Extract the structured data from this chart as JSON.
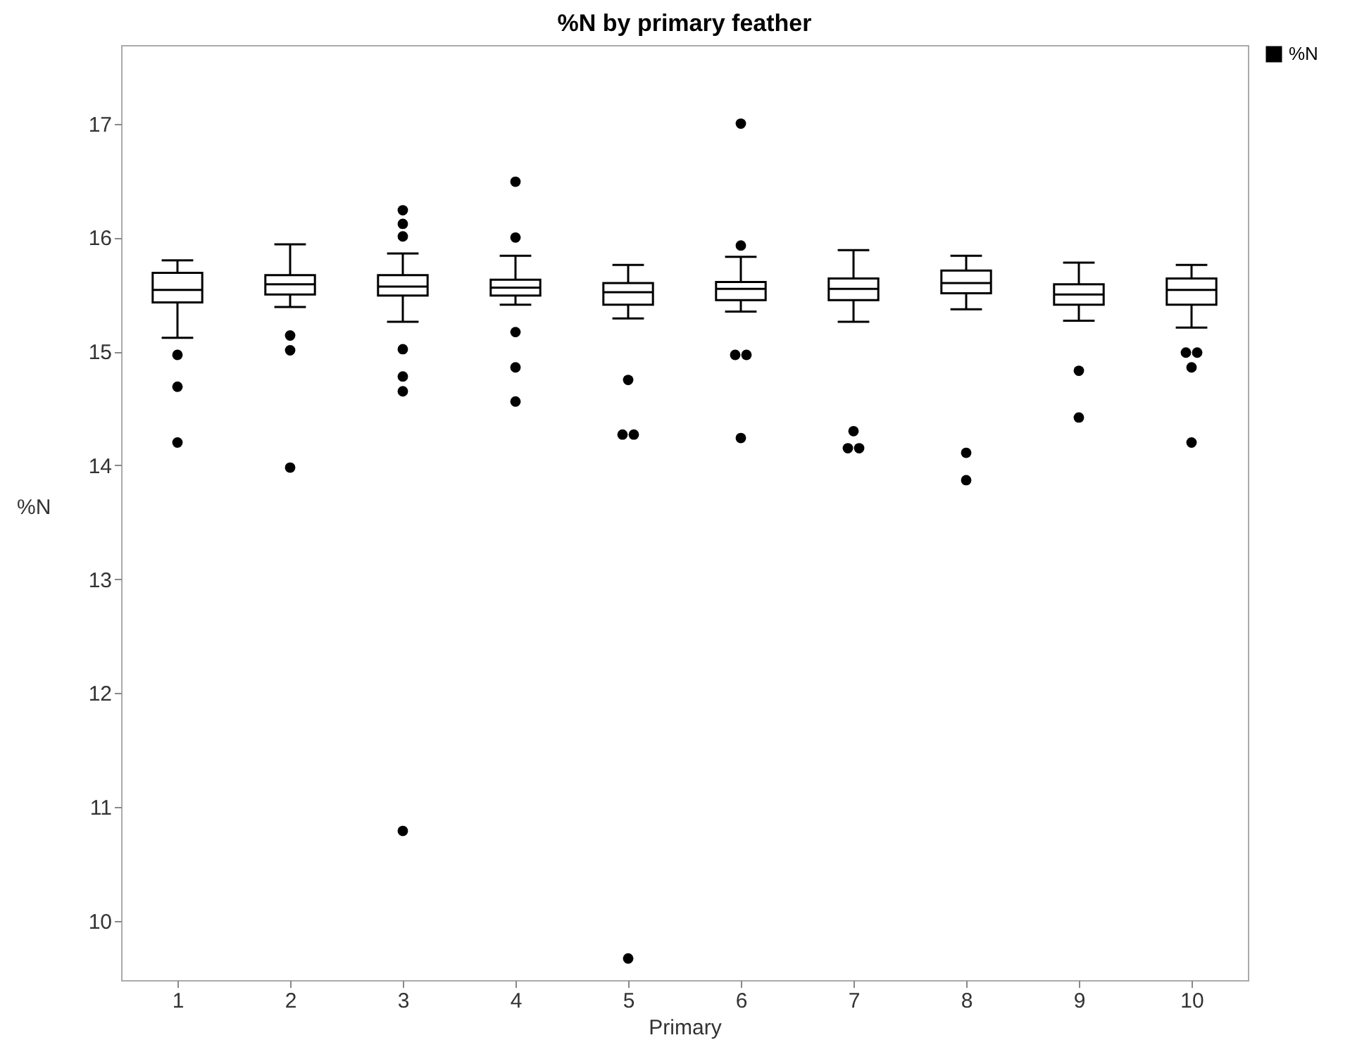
{
  "chart_data": {
    "type": "box",
    "title": "%N by primary feather",
    "xlabel": "Primary",
    "ylabel": "%N",
    "categories": [
      "1",
      "2",
      "3",
      "4",
      "5",
      "6",
      "7",
      "8",
      "9",
      "10"
    ],
    "ylim": [
      9.48,
      17.69
    ],
    "yticks": [
      10,
      11,
      12,
      13,
      14,
      15,
      16,
      17
    ],
    "grid": false,
    "legend": "top right",
    "series": [
      {
        "name": "%N",
        "color": "#000000",
        "boxes": [
          {
            "low": 15.12,
            "q1": 15.43,
            "median": 15.54,
            "q3": 15.69,
            "high": 15.8,
            "outliers": [
              14.97,
              14.69,
              14.2
            ]
          },
          {
            "low": 15.39,
            "q1": 15.5,
            "median": 15.59,
            "q3": 15.67,
            "high": 15.94,
            "outliers": [
              15.14,
              15.01,
              13.98
            ]
          },
          {
            "low": 15.26,
            "q1": 15.49,
            "median": 15.57,
            "q3": 15.67,
            "high": 15.86,
            "outliers": [
              16.24,
              16.12,
              16.01,
              15.02,
              14.78,
              14.65,
              10.79
            ]
          },
          {
            "low": 15.41,
            "q1": 15.49,
            "median": 15.56,
            "q3": 15.63,
            "high": 15.84,
            "outliers": [
              16.49,
              16.0,
              15.17,
              14.86,
              14.56
            ]
          },
          {
            "low": 15.29,
            "q1": 15.41,
            "median": 15.52,
            "q3": 15.6,
            "high": 15.76,
            "outliers": [
              14.75,
              14.27,
              14.27,
              9.67
            ]
          },
          {
            "low": 15.35,
            "q1": 15.45,
            "median": 15.55,
            "q3": 15.61,
            "high": 15.83,
            "outliers": [
              17.0,
              15.93,
              14.97,
              14.97,
              14.24
            ]
          },
          {
            "low": 15.26,
            "q1": 15.45,
            "median": 15.55,
            "q3": 15.64,
            "high": 15.89,
            "outliers": [
              14.3,
              14.15,
              14.15
            ]
          },
          {
            "low": 15.37,
            "q1": 15.51,
            "median": 15.6,
            "q3": 15.71,
            "high": 15.84,
            "outliers": [
              14.11,
              13.87
            ]
          },
          {
            "low": 15.27,
            "q1": 15.41,
            "median": 15.5,
            "q3": 15.59,
            "high": 15.78,
            "outliers": [
              14.83,
              14.42
            ]
          },
          {
            "low": 15.21,
            "q1": 15.41,
            "median": 15.54,
            "q3": 15.64,
            "high": 15.76,
            "outliers": [
              14.99,
              14.99,
              14.86,
              14.2
            ]
          }
        ]
      }
    ]
  }
}
